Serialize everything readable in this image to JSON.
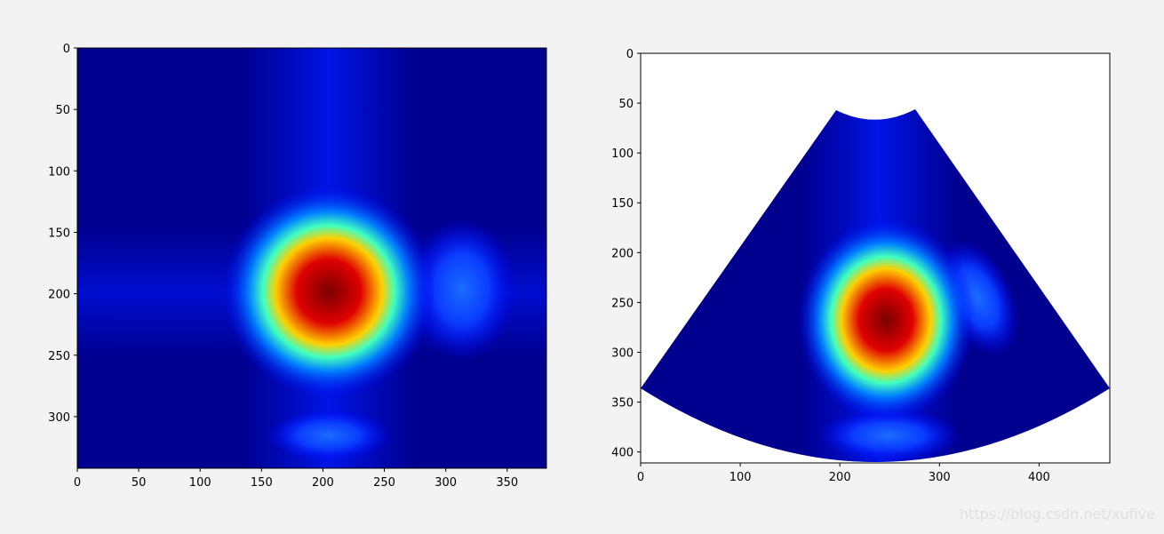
{
  "chart_data": [
    {
      "type": "heatmap",
      "xlim": [
        0,
        382
      ],
      "ylim": [
        342,
        0
      ],
      "xticks": [
        0,
        50,
        100,
        150,
        200,
        250,
        300,
        350
      ],
      "yticks": [
        0,
        50,
        100,
        150,
        200,
        250,
        300
      ]
    },
    {
      "type": "heatmap",
      "xlim": [
        0,
        471
      ],
      "ylim": [
        411,
        0
      ],
      "xticks": [
        0,
        100,
        200,
        300,
        400
      ],
      "yticks": [
        0,
        50,
        100,
        150,
        200,
        250,
        300,
        350,
        400
      ]
    }
  ],
  "watermark": "https://blog.csdn.net/xufive"
}
